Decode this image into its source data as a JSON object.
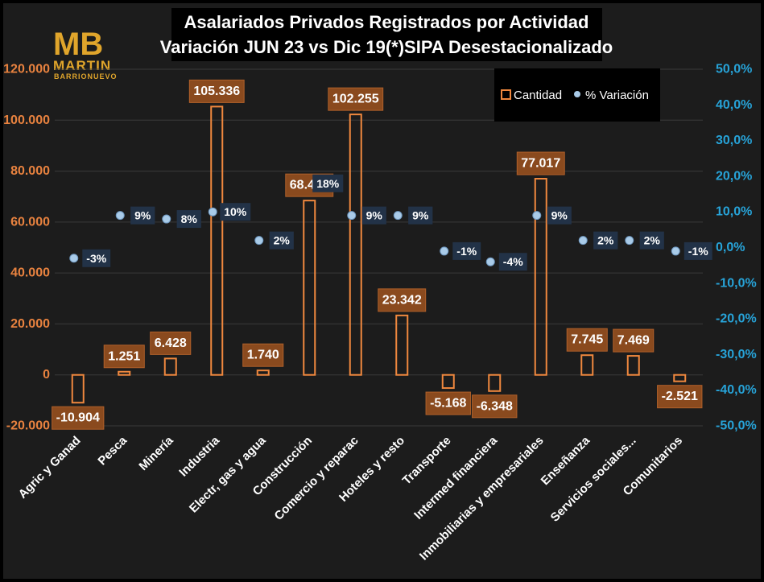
{
  "logo": {
    "letters": "MB",
    "name": "MARTIN",
    "sub": "BARRIONUEVO"
  },
  "chart_data": {
    "type": "bar",
    "title": "Asalariados  Privados Registrados por Actividad",
    "subtitle": "Variación JUN 23 vs Dic 19(*)SIPA Desestacionalizado",
    "categories": [
      "Agric y Ganad",
      "Pesca",
      "Minería",
      "Industria",
      "Electr, gas y agua",
      "Construcción",
      "Comercio y reparac",
      "Hoteles y resto",
      "Transporte",
      "Intermed financiera",
      "Inmobiliarias y empresariales",
      "Enseñanza",
      "Servicios sociales...",
      "Comunitarios"
    ],
    "series": [
      {
        "name": "Cantidad",
        "axis": "left",
        "values": [
          -10904,
          1251,
          6428,
          105336,
          1740,
          68441,
          102255,
          23342,
          -5168,
          -6348,
          77017,
          7745,
          7469,
          -2521
        ],
        "labels": [
          "-10.904",
          "1.251",
          "6.428",
          "105.336",
          "1.740",
          "68.441",
          "102.255",
          "23.342",
          "-5.168",
          "-6.348",
          "77.017",
          "7.745",
          "7.469",
          "-2.521"
        ]
      },
      {
        "name": "% Variación",
        "axis": "right",
        "values": [
          -3,
          9,
          8,
          10,
          2,
          18,
          9,
          9,
          -1,
          -4,
          9,
          2,
          2,
          -1
        ],
        "labels": [
          "-3%",
          "9%",
          "8%",
          "10%",
          "2%",
          "18%",
          "9%",
          "9%",
          "-1%",
          "-4%",
          "9%",
          "2%",
          "2%",
          "-1%"
        ]
      }
    ],
    "y_left": {
      "ylim": [
        -20000,
        120000
      ],
      "ticks": [
        -20000,
        0,
        20000,
        40000,
        60000,
        80000,
        100000,
        120000
      ],
      "tick_labels": [
        "-20.000",
        "0",
        "20.000",
        "40.000",
        "60.000",
        "80.000",
        "100.000",
        "120.000"
      ]
    },
    "y_right": {
      "ylim": [
        -50,
        50
      ],
      "ticks": [
        -50,
        -40,
        -30,
        -20,
        -10,
        0,
        10,
        20,
        30,
        40,
        50
      ],
      "tick_labels": [
        "-50,0%",
        "-40,0%",
        "-30,0%",
        "-20,0%",
        "-10,0%",
        "0,0%",
        "10,0%",
        "20,0%",
        "30,0%",
        "40,0%",
        "50,0%"
      ]
    },
    "grid": true,
    "legend": {
      "placement": "top-right",
      "entries": [
        "Cantidad",
        "% Variación"
      ]
    },
    "colors": {
      "bar_outline": "#f0883e",
      "bar_label_bg": "#8a4a1e",
      "dot": "#a9cbe8",
      "left_axis": "#e8823f",
      "right_axis": "#27a3d8",
      "logo": "#e0a52b"
    }
  }
}
